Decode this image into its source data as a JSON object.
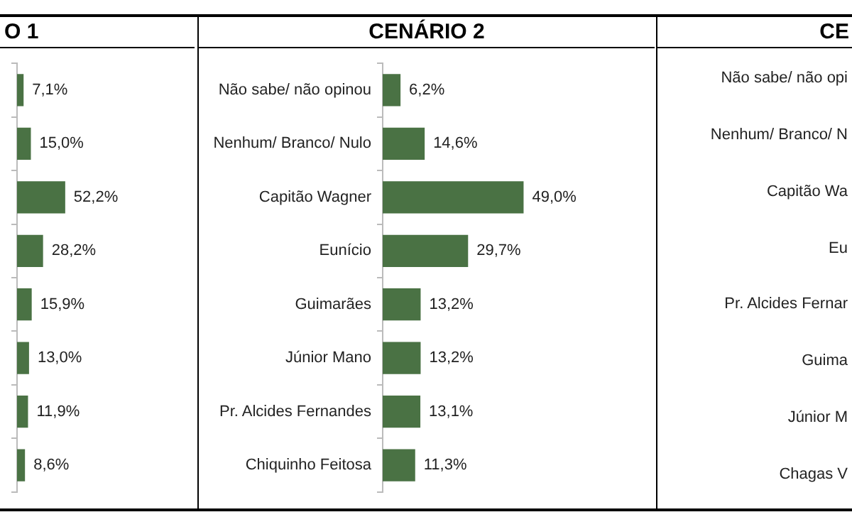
{
  "chart_data": [
    {
      "type": "bar",
      "orientation": "horizontal",
      "title": "O 1",
      "categories": [
        null,
        null,
        null,
        null,
        null,
        null,
        null,
        null
      ],
      "values": [
        7.1,
        15.0,
        52.2,
        28.2,
        15.9,
        13.0,
        11.9,
        8.6
      ],
      "value_labels": [
        "7,1%",
        "15,0%",
        "52,2%",
        "28,2%",
        "15,9%",
        "13,0%",
        "11,9%",
        "8,6%"
      ],
      "color": "#4a7244"
    },
    {
      "type": "bar",
      "orientation": "horizontal",
      "title": "CENÁRIO 2",
      "categories": [
        "Não sabe/ não opinou",
        "Nenhum/ Branco/ Nulo",
        "Capitão Wagner",
        "Eunício",
        "Guimarães",
        "Júnior Mano",
        "Pr. Alcides Fernandes",
        "Chiquinho Feitosa"
      ],
      "values": [
        6.2,
        14.6,
        49.0,
        29.7,
        13.2,
        13.2,
        13.1,
        11.3
      ],
      "value_labels": [
        "6,2%",
        "14,6%",
        "49,0%",
        "29,7%",
        "13,2%",
        "13,2%",
        "13,1%",
        "11,3%"
      ],
      "color": "#4a7244"
    },
    {
      "type": "other",
      "title": "CE",
      "annotations": [
        "Não sabe/ não opi",
        "Nenhum/ Branco/ N",
        "Capitão Wa",
        "Eu",
        "Pr. Alcides Fernar",
        "Guima",
        "Júnior M",
        "Chagas V"
      ]
    }
  ]
}
